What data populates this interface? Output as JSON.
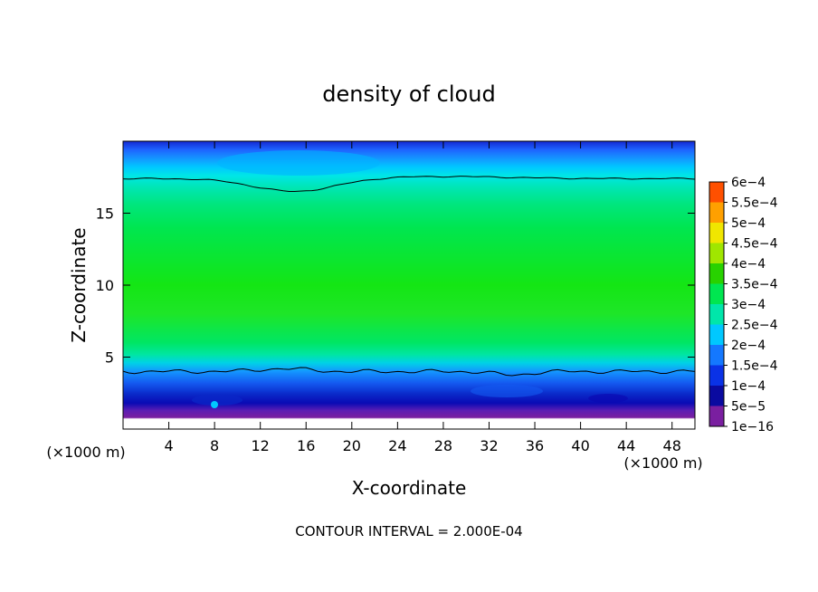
{
  "chart_data": {
    "type": "heatmap",
    "title": "density of cloud",
    "xlabel": "X-coordinate",
    "ylabel": "Z-coordinate",
    "x_unit_left": "(×1000 m)",
    "x_unit_right": "(×1000 m)",
    "x_ticks": [
      4,
      8,
      12,
      16,
      20,
      24,
      28,
      32,
      36,
      40,
      44,
      48
    ],
    "y_ticks": [
      5,
      10,
      15
    ],
    "xlim": [
      0,
      50
    ],
    "ylim": [
      0,
      20
    ],
    "contour_interval_label": "CONTOUR INTERVAL = 2.000E-04",
    "colorbar": {
      "labels": [
        "1e−16",
        "5e−5",
        "1e−4",
        "1.5e−4",
        "2e−4",
        "2.5e−4",
        "3e−4",
        "3.5e−4",
        "4e−4",
        "4.5e−4",
        "5e−4",
        "5.5e−4",
        "6e−4"
      ],
      "colors": [
        "#7a1fa0",
        "#0a0aa0",
        "#0a32e6",
        "#1478ff",
        "#00c8ff",
        "#00e6aa",
        "#00e650",
        "#28d200",
        "#a0e600",
        "#f0e600",
        "#ffa000",
        "#ff5000",
        "#ff1e1e",
        "#ff9696"
      ]
    },
    "contour_levels_km": {
      "lower": 4,
      "upper": 17.4
    },
    "layers": [
      {
        "z_from": 0,
        "z_to": 1.0,
        "level": "1e−16"
      },
      {
        "z_from": 1.0,
        "z_to": 1.6,
        "level": "5e−5"
      },
      {
        "z_from": 1.6,
        "z_to": 2.6,
        "level": "1e−4"
      },
      {
        "z_from": 2.6,
        "z_to": 3.4,
        "level": "1.5e−4"
      },
      {
        "z_from": 3.4,
        "z_to": 4.0,
        "level": "2e−4"
      },
      {
        "z_from": 4.0,
        "z_to": 16.5,
        "level": "2.5e−4–3e−4"
      },
      {
        "z_from": 16.5,
        "z_to": 18.0,
        "level": "2e−4"
      },
      {
        "z_from": 18.0,
        "z_to": 19.2,
        "level": "1.5e−4"
      },
      {
        "z_from": 19.2,
        "z_to": 20,
        "level": "1e−4"
      }
    ]
  }
}
